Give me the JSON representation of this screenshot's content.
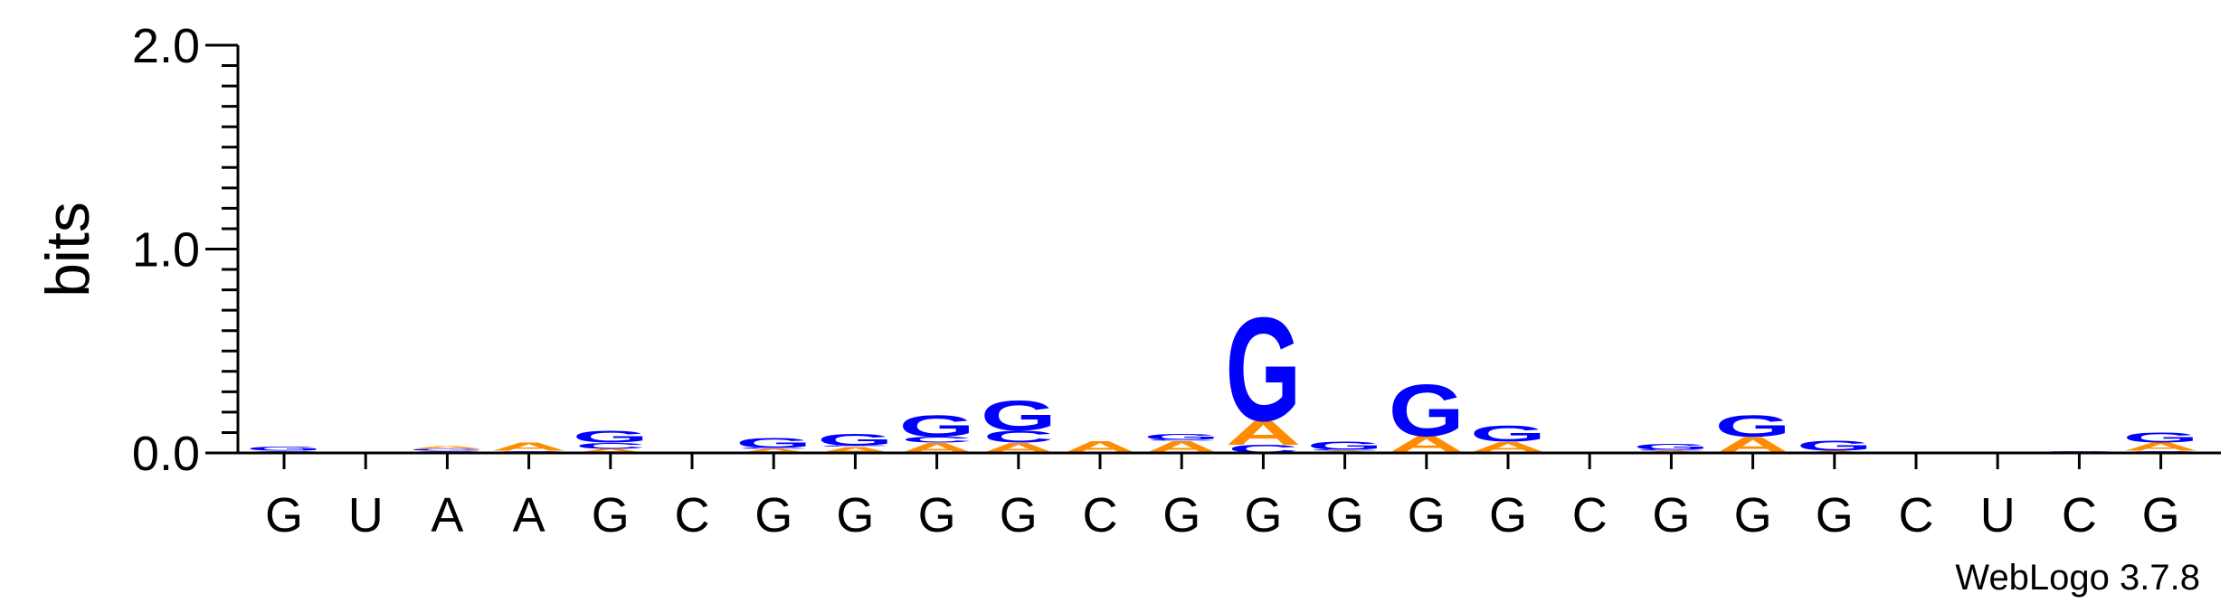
{
  "chart_data": {
    "type": "sequence-logo",
    "ylabel": "bits",
    "ylim": [
      0,
      2.0
    ],
    "yticks": [
      "0.0",
      "1.0",
      "2.0"
    ],
    "colors": {
      "G": "#0000ff",
      "A": "#ff8c00",
      "C": "#0000ff",
      "U": "#ff0000"
    },
    "positions": [
      {
        "label": "G",
        "stack": [
          {
            "letter": "C",
            "bits": 0.01
          },
          {
            "letter": "G",
            "bits": 0.02
          }
        ]
      },
      {
        "label": "U",
        "stack": []
      },
      {
        "label": "A",
        "stack": [
          {
            "letter": "C",
            "bits": 0.01
          },
          {
            "letter": "G",
            "bits": 0.01
          },
          {
            "letter": "A",
            "bits": 0.015
          }
        ]
      },
      {
        "label": "A",
        "stack": [
          {
            "letter": "C",
            "bits": 0.01
          },
          {
            "letter": "A",
            "bits": 0.04
          }
        ]
      },
      {
        "label": "G",
        "stack": [
          {
            "letter": "A",
            "bits": 0.02
          },
          {
            "letter": "C",
            "bits": 0.03
          },
          {
            "letter": "G",
            "bits": 0.06
          }
        ]
      },
      {
        "label": "C",
        "stack": []
      },
      {
        "label": "G",
        "stack": [
          {
            "letter": "A",
            "bits": 0.02
          },
          {
            "letter": "C",
            "bits": 0.005
          },
          {
            "letter": "G",
            "bits": 0.05
          }
        ]
      },
      {
        "label": "G",
        "stack": [
          {
            "letter": "A",
            "bits": 0.03
          },
          {
            "letter": "C",
            "bits": 0.005
          },
          {
            "letter": "G",
            "bits": 0.06
          }
        ]
      },
      {
        "label": "G",
        "stack": [
          {
            "letter": "A",
            "bits": 0.05
          },
          {
            "letter": "C",
            "bits": 0.03
          },
          {
            "letter": "G",
            "bits": 0.11
          }
        ]
      },
      {
        "label": "G",
        "stack": [
          {
            "letter": "A",
            "bits": 0.05
          },
          {
            "letter": "C",
            "bits": 0.06
          },
          {
            "letter": "G",
            "bits": 0.15
          }
        ]
      },
      {
        "label": "C",
        "stack": [
          {
            "letter": "A",
            "bits": 0.06
          }
        ]
      },
      {
        "label": "G",
        "stack": [
          {
            "letter": "A",
            "bits": 0.06
          },
          {
            "letter": "C",
            "bits": 0.005
          },
          {
            "letter": "G",
            "bits": 0.03
          }
        ]
      },
      {
        "label": "G",
        "stack": [
          {
            "letter": "C",
            "bits": 0.04
          },
          {
            "letter": "A",
            "bits": 0.12
          },
          {
            "letter": "G",
            "bits": 0.52
          }
        ]
      },
      {
        "label": "G",
        "stack": [
          {
            "letter": "A",
            "bits": 0.01
          },
          {
            "letter": "C",
            "bits": 0.005
          },
          {
            "letter": "G",
            "bits": 0.04
          }
        ]
      },
      {
        "label": "G",
        "stack": [
          {
            "letter": "C",
            "bits": 0.005
          },
          {
            "letter": "A",
            "bits": 0.08
          },
          {
            "letter": "G",
            "bits": 0.26
          }
        ]
      },
      {
        "label": "G",
        "stack": [
          {
            "letter": "C",
            "bits": 0.005
          },
          {
            "letter": "A",
            "bits": 0.05
          },
          {
            "letter": "G",
            "bits": 0.08
          }
        ]
      },
      {
        "label": "C",
        "stack": []
      },
      {
        "label": "G",
        "stack": [
          {
            "letter": "A",
            "bits": 0.01
          },
          {
            "letter": "C",
            "bits": 0.005
          },
          {
            "letter": "G",
            "bits": 0.03
          }
        ]
      },
      {
        "label": "G",
        "stack": [
          {
            "letter": "A",
            "bits": 0.08
          },
          {
            "letter": "G",
            "bits": 0.11
          }
        ]
      },
      {
        "label": "G",
        "stack": [
          {
            "letter": "A",
            "bits": 0.01
          },
          {
            "letter": "G",
            "bits": 0.05
          }
        ]
      },
      {
        "label": "C",
        "stack": []
      },
      {
        "label": "U",
        "stack": []
      },
      {
        "label": "C",
        "stack": [
          {
            "letter": "G",
            "bits": 0.01
          }
        ]
      },
      {
        "label": "G",
        "stack": [
          {
            "letter": "C",
            "bits": 0.01
          },
          {
            "letter": "A",
            "bits": 0.04
          },
          {
            "letter": "G",
            "bits": 0.05
          }
        ]
      }
    ]
  },
  "credit": "WebLogo 3.7.8"
}
